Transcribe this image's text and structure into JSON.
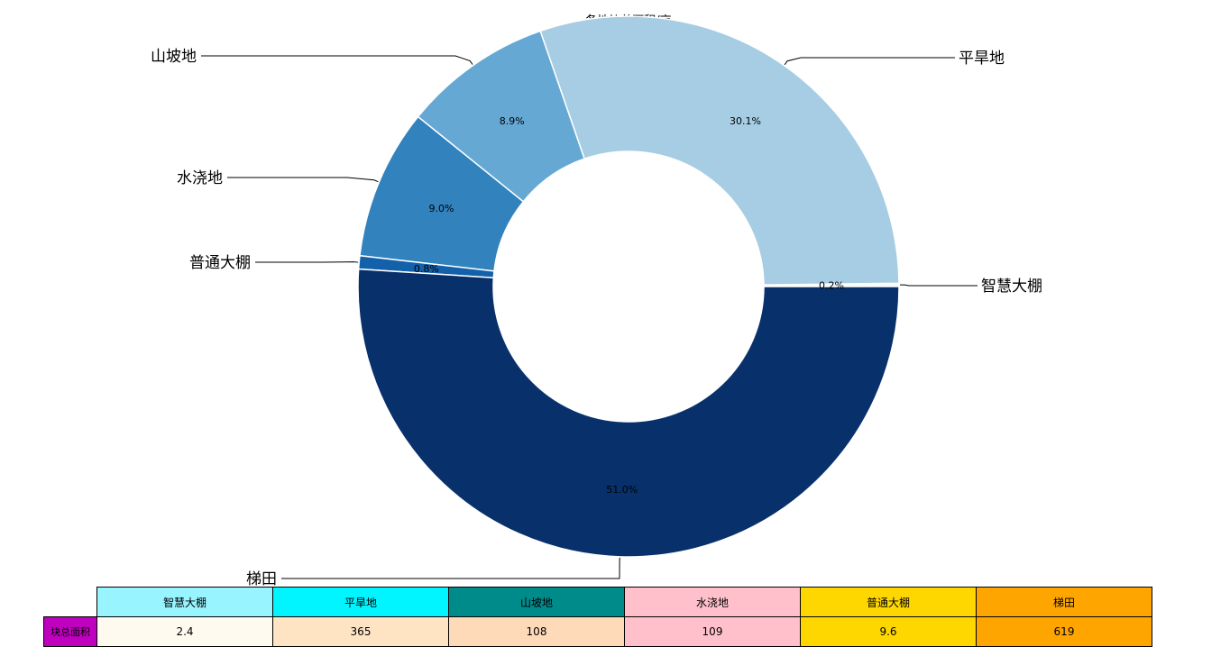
{
  "chart_data": {
    "type": "pie",
    "donut": true,
    "title": "各地块总面积/亩",
    "slices": [
      {
        "label": "智慧大棚",
        "value": 2.4,
        "pct_label": "0.2%",
        "color": "#f7fbff"
      },
      {
        "label": "平旱地",
        "value": 365,
        "pct_label": "30.1%",
        "color": "#a6cde3"
      },
      {
        "label": "山坡地",
        "value": 108,
        "pct_label": "8.9%",
        "color": "#65a8d3"
      },
      {
        "label": "水浇地",
        "value": 109,
        "pct_label": "9.0%",
        "color": "#3282be"
      },
      {
        "label": "普通大棚",
        "value": 9.6,
        "pct_label": "0.8%",
        "color": "#1361aa"
      },
      {
        "label": "梯田",
        "value": 619,
        "pct_label": "51.0%",
        "color": "#08306b"
      }
    ],
    "table": {
      "row_label": "块总面积",
      "row_label_color": "#bf00bf",
      "columns": [
        {
          "header": "智慧大棚",
          "value": "2.4",
          "header_color": "#98f5ff",
          "cell_color": "#fffaf0"
        },
        {
          "header": "平旱地",
          "value": "365",
          "header_color": "#00f5ff",
          "cell_color": "#ffe4c4"
        },
        {
          "header": "山坡地",
          "value": "108",
          "header_color": "#008b8b",
          "cell_color": "#ffdab9"
        },
        {
          "header": "水浇地",
          "value": "109",
          "header_color": "#ffc0cb",
          "cell_color": "#ffc0cb"
        },
        {
          "header": "普通大棚",
          "value": "9.6",
          "header_color": "#ffd700",
          "cell_color": "#ffd700"
        },
        {
          "header": "梯田",
          "value": "619",
          "header_color": "#ffa500",
          "cell_color": "#ffa500"
        }
      ]
    }
  }
}
